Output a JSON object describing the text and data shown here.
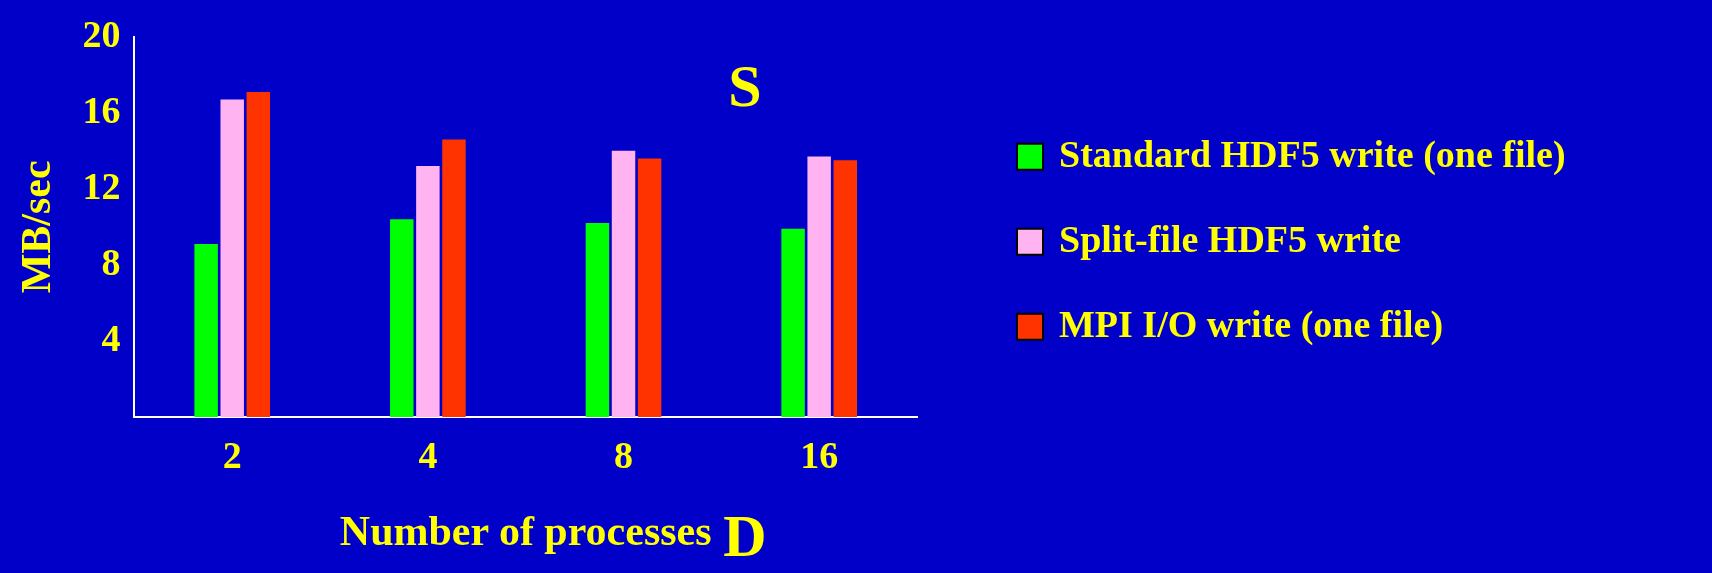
{
  "chart_data": {
    "type": "bar",
    "xlabel": "Number of processes",
    "ylabel": "MB/sec",
    "categories": [
      "2",
      "4",
      "8",
      "16"
    ],
    "series": [
      {
        "name": "Standard HDF5 write (one file)",
        "color": "#00ff00",
        "values": [
          9.1,
          10.4,
          10.2,
          9.9
        ]
      },
      {
        "name": "Split-file HDF5 write",
        "color": "#ffb3f0",
        "values": [
          16.7,
          13.2,
          14.0,
          13.7
        ]
      },
      {
        "name": "MPI I/O write (one file)",
        "color": "#ff3300",
        "values": [
          17.1,
          14.6,
          13.6,
          13.5
        ]
      }
    ],
    "ylim": [
      0,
      20
    ],
    "yticks": [
      4,
      8,
      12,
      16,
      20
    ],
    "grid": false,
    "legend": "right",
    "annotations": [
      "S",
      "D"
    ]
  }
}
